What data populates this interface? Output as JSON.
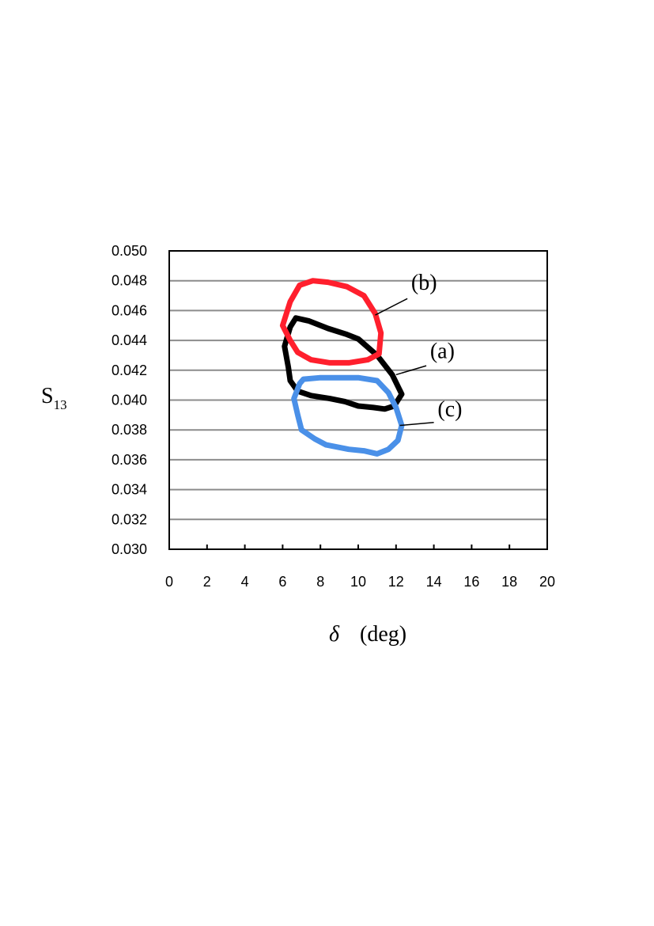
{
  "chart_data": {
    "type": "scatter",
    "title": "",
    "xlabel_symbol": "δ",
    "xlabel_unit": "(deg)",
    "ylabel_main": "S",
    "ylabel_sub": "13",
    "xlim": [
      0,
      20
    ],
    "ylim": [
      0.03,
      0.05
    ],
    "xticks": [
      "0",
      "2",
      "4",
      "6",
      "8",
      "10",
      "12",
      "14",
      "16",
      "18",
      "20"
    ],
    "yticks": [
      "0.030",
      "0.032",
      "0.034",
      "0.036",
      "0.038",
      "0.040",
      "0.042",
      "0.044",
      "0.046",
      "0.048",
      "0.050"
    ],
    "grid": "horizontal",
    "series": [
      {
        "label": "(a)",
        "color": "#000000",
        "label_pos": [
          13.8,
          0.0428
        ],
        "leader_start": [
          13.6,
          0.0423
        ],
        "leader_end": [
          12.0,
          0.0417
        ],
        "contour": [
          [
            6.7,
            0.0455
          ],
          [
            7.4,
            0.0453
          ],
          [
            8.4,
            0.0448
          ],
          [
            9.4,
            0.0444
          ],
          [
            10.0,
            0.0441
          ],
          [
            11.0,
            0.043
          ],
          [
            11.8,
            0.0417
          ],
          [
            12.3,
            0.0404
          ],
          [
            11.9,
            0.0396
          ],
          [
            11.4,
            0.0394
          ],
          [
            10.8,
            0.0395
          ],
          [
            10.0,
            0.0396
          ],
          [
            9.3,
            0.0399
          ],
          [
            8.5,
            0.0401
          ],
          [
            7.5,
            0.0403
          ],
          [
            6.8,
            0.0406
          ],
          [
            6.4,
            0.0413
          ],
          [
            6.3,
            0.0422
          ],
          [
            6.1,
            0.0436
          ],
          [
            6.4,
            0.0449
          ]
        ]
      },
      {
        "label": "(b)",
        "color": "#ff1f2d",
        "label_pos": [
          12.8,
          0.0474
        ],
        "leader_start": [
          12.6,
          0.0468
        ],
        "leader_end": [
          10.9,
          0.0457
        ],
        "contour": [
          [
            6.9,
            0.0477
          ],
          [
            7.6,
            0.048
          ],
          [
            8.4,
            0.0479
          ],
          [
            9.4,
            0.0476
          ],
          [
            10.3,
            0.047
          ],
          [
            10.9,
            0.0458
          ],
          [
            11.2,
            0.0445
          ],
          [
            11.1,
            0.0431
          ],
          [
            10.5,
            0.0427
          ],
          [
            9.5,
            0.0425
          ],
          [
            8.5,
            0.0425
          ],
          [
            7.5,
            0.0427
          ],
          [
            6.8,
            0.0432
          ],
          [
            6.4,
            0.044
          ],
          [
            6.0,
            0.045
          ],
          [
            6.4,
            0.0466
          ]
        ]
      },
      {
        "label": "(c)",
        "color": "#4a90e8",
        "label_pos": [
          14.2,
          0.0389
        ],
        "leader_start": [
          14.0,
          0.0385
        ],
        "leader_end": [
          12.2,
          0.0383
        ],
        "contour": [
          [
            7.1,
            0.0414
          ],
          [
            8.0,
            0.0415
          ],
          [
            9.0,
            0.0415
          ],
          [
            10.0,
            0.0415
          ],
          [
            11.0,
            0.0413
          ],
          [
            11.6,
            0.0405
          ],
          [
            12.0,
            0.0395
          ],
          [
            12.3,
            0.0383
          ],
          [
            12.1,
            0.0373
          ],
          [
            11.6,
            0.0367
          ],
          [
            11.0,
            0.0364
          ],
          [
            10.3,
            0.0366
          ],
          [
            9.5,
            0.0367
          ],
          [
            8.3,
            0.037
          ],
          [
            7.7,
            0.0374
          ],
          [
            7.0,
            0.038
          ],
          [
            6.8,
            0.039
          ],
          [
            6.6,
            0.0401
          ],
          [
            6.9,
            0.0411
          ]
        ]
      }
    ]
  }
}
